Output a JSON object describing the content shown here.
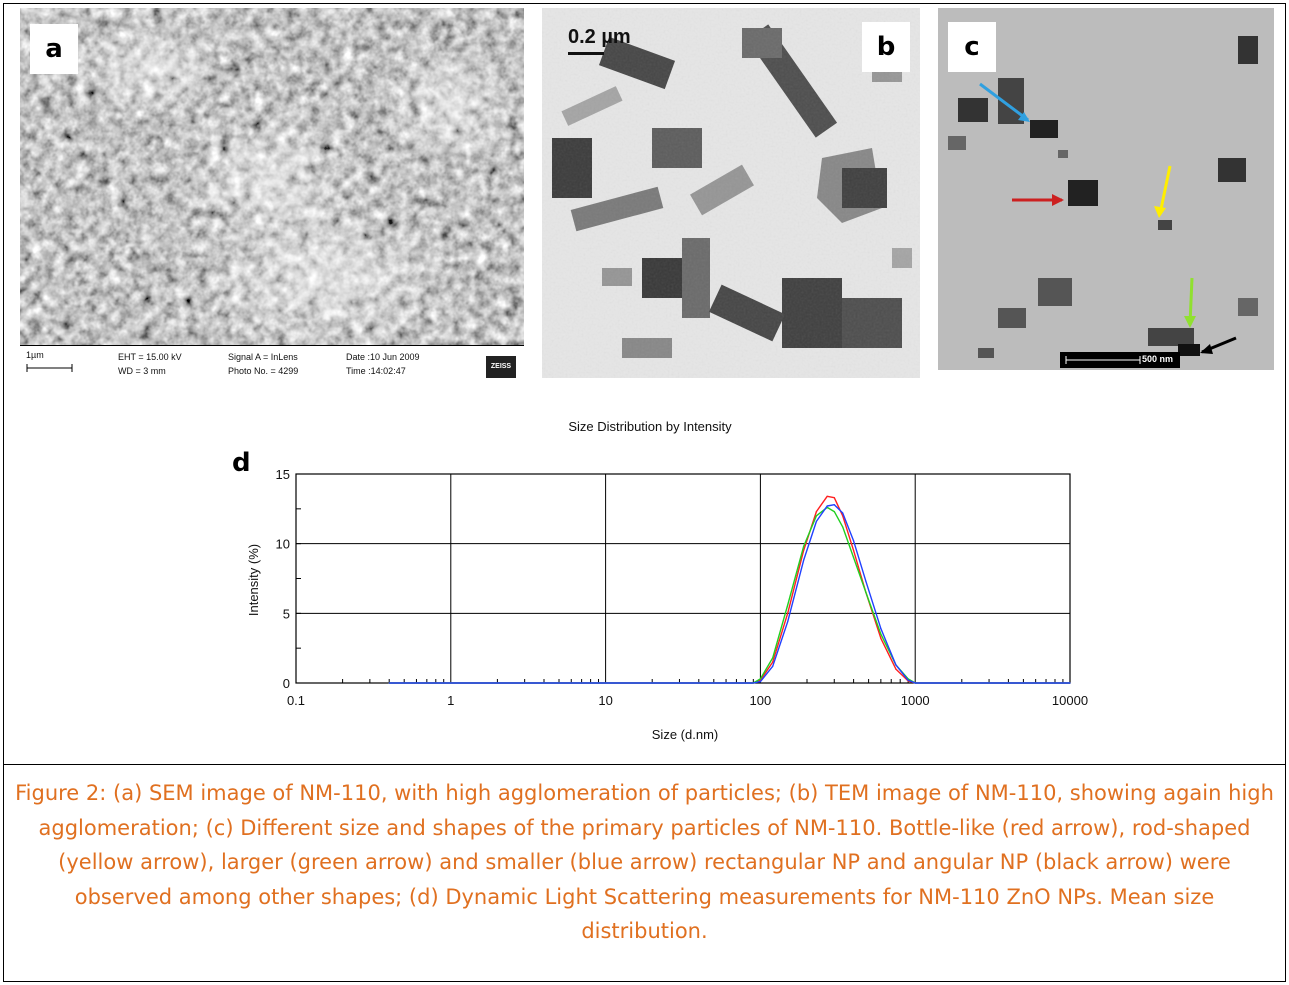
{
  "panels": {
    "a": {
      "label": "a",
      "sem_bar": {
        "scale": "1µm",
        "eht": "EHT = 15.00 kV",
        "wd": "WD =   3 mm",
        "signal": "Signal A = InLens",
        "photo": "Photo No. = 4299",
        "date": "Date :10 Jun 2009",
        "time": "Time :14:02:47",
        "logo": "ZEISS"
      }
    },
    "b": {
      "label": "b",
      "scale": "0.2 µm"
    },
    "c": {
      "label": "c",
      "scale": "500 nm"
    },
    "d": {
      "label": "d"
    }
  },
  "colors": {
    "caption": "#e07020",
    "series_red": "#ff2020",
    "series_green": "#20d020",
    "series_blue": "#2040ff",
    "arrow_red": "#cc2020",
    "arrow_yellow": "#ffee00",
    "arrow_green": "#90e030",
    "arrow_blue": "#30a0e0",
    "arrow_black": "#000000"
  },
  "chart_data": {
    "type": "line",
    "title": "Size Distribution by Intensity",
    "xlabel": "Size (d.nm)",
    "ylabel": "Intensity (%)",
    "xscale": "log",
    "xlim": [
      0.1,
      10000
    ],
    "ylim": [
      0,
      15
    ],
    "xticks": [
      "0.1",
      "1",
      "10",
      "100",
      "1000",
      "10000"
    ],
    "yticks": [
      "0",
      "5",
      "10",
      "15"
    ],
    "grid": true,
    "legend": "none",
    "series": [
      {
        "color": "red",
        "x": [
          0.4,
          90,
          100,
          120,
          150,
          190,
          230,
          270,
          300,
          340,
          400,
          480,
          600,
          750,
          900,
          1000,
          10000
        ],
        "values": [
          0,
          0,
          0.2,
          1.5,
          5.0,
          9.5,
          12.3,
          13.4,
          13.3,
          12.0,
          9.5,
          6.5,
          3.2,
          1.0,
          0.15,
          0,
          0
        ]
      },
      {
        "color": "green",
        "x": [
          0.4,
          90,
          100,
          120,
          150,
          190,
          230,
          270,
          300,
          340,
          400,
          480,
          600,
          750,
          900,
          1000,
          10000
        ],
        "values": [
          0,
          0,
          0.3,
          1.8,
          5.6,
          9.8,
          12.0,
          12.6,
          12.3,
          11.2,
          9.0,
          6.5,
          3.5,
          1.3,
          0.3,
          0,
          0
        ]
      },
      {
        "color": "blue",
        "x": [
          0.4,
          90,
          100,
          120,
          150,
          190,
          230,
          270,
          300,
          340,
          400,
          480,
          600,
          750,
          900,
          1000,
          10000
        ],
        "values": [
          0,
          0,
          0.1,
          1.2,
          4.4,
          8.8,
          11.6,
          12.7,
          12.8,
          12.2,
          10.2,
          7.3,
          3.9,
          1.3,
          0.2,
          0,
          0
        ]
      }
    ]
  },
  "caption": "Figure 2: (a) SEM image of NM-110, with high agglomeration of particles; (b) TEM image of NM-110, showing again high agglomeration; (c) Different size and shapes of the primary particles of NM-110. Bottle-like (red arrow), rod-shaped (yellow arrow), larger (green arrow) and smaller (blue arrow) rectangular NP and angular NP (black arrow) were observed among other shapes; (d) Dynamic Light Scattering measurements for NM-110 ZnO NPs. Mean size distribution."
}
